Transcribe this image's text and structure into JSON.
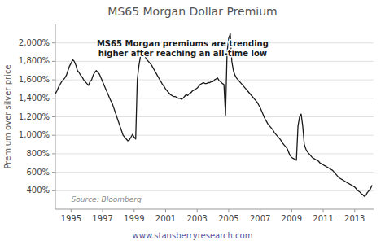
{
  "chart_data": {
    "type": "line",
    "title": "MS65 Morgan Dollar Premium",
    "ylabel": "Premium over silver price",
    "annotations": [
      "MS65 Morgan premiums are trending\nhigher after reaching an all-time low",
      "Source: Bloomberg",
      "www.stansberryresearch.com"
    ],
    "color": "#1a1a1a",
    "grid": true,
    "xlim": [
      1994.0,
      2014.2
    ],
    "xticks": [
      1995,
      1997,
      1999,
      2001,
      2003,
      2005,
      2007,
      2009,
      2011,
      2013
    ],
    "ylim": [
      200,
      2200
    ],
    "yticks": [
      {
        "value": 400,
        "label": "400%"
      },
      {
        "value": 600,
        "label": "600%"
      },
      {
        "value": 800,
        "label": "800%"
      },
      {
        "value": 1000,
        "label": "1,000%"
      },
      {
        "value": 1200,
        "label": "1,200%"
      },
      {
        "value": 1400,
        "label": "1,400%"
      },
      {
        "value": 1600,
        "label": "1,600%"
      },
      {
        "value": 1800,
        "label": "1,800%"
      },
      {
        "value": 2000,
        "label": "2,000%"
      }
    ],
    "x": [
      1994.0,
      1994.1,
      1994.2,
      1994.3,
      1994.4,
      1994.5,
      1994.6,
      1994.7,
      1994.8,
      1994.9,
      1995.0,
      1995.1,
      1995.2,
      1995.3,
      1995.4,
      1995.5,
      1995.6,
      1995.7,
      1995.8,
      1995.9,
      1996.0,
      1996.1,
      1996.2,
      1996.3,
      1996.4,
      1996.5,
      1996.6,
      1996.7,
      1996.8,
      1996.9,
      1997.0,
      1997.1,
      1997.2,
      1997.3,
      1997.4,
      1997.5,
      1997.6,
      1997.7,
      1997.8,
      1997.9,
      1998.0,
      1998.1,
      1998.2,
      1998.3,
      1998.4,
      1998.5,
      1998.6,
      1998.7,
      1998.8,
      1998.9,
      1999.0,
      1999.1,
      1999.2,
      1999.3,
      1999.4,
      1999.5,
      1999.6,
      1999.7,
      1999.8,
      1999.9,
      2000.0,
      2000.1,
      2000.2,
      2000.3,
      2000.4,
      2000.5,
      2000.6,
      2000.7,
      2000.8,
      2000.9,
      2001.0,
      2001.1,
      2001.2,
      2001.3,
      2001.4,
      2001.5,
      2001.6,
      2001.7,
      2001.8,
      2001.9,
      2002.0,
      2002.1,
      2002.2,
      2002.3,
      2002.4,
      2002.5,
      2002.6,
      2002.7,
      2002.8,
      2002.9,
      2003.0,
      2003.1,
      2003.2,
      2003.3,
      2003.4,
      2003.5,
      2003.6,
      2003.7,
      2003.8,
      2003.9,
      2004.0,
      2004.1,
      2004.2,
      2004.3,
      2004.4,
      2004.5,
      2004.6,
      2004.7,
      2004.8,
      2004.9,
      2005.0,
      2005.1,
      2005.2,
      2005.3,
      2005.4,
      2005.5,
      2005.6,
      2005.7,
      2005.8,
      2005.9,
      2006.0,
      2006.1,
      2006.2,
      2006.3,
      2006.4,
      2006.5,
      2006.6,
      2006.7,
      2006.8,
      2006.9,
      2007.0,
      2007.1,
      2007.2,
      2007.3,
      2007.4,
      2007.5,
      2007.6,
      2007.7,
      2007.8,
      2007.9,
      2008.0,
      2008.1,
      2008.2,
      2008.3,
      2008.4,
      2008.5,
      2008.6,
      2008.7,
      2008.8,
      2008.9,
      2009.0,
      2009.1,
      2009.2,
      2009.3,
      2009.4,
      2009.5,
      2009.6,
      2009.7,
      2009.8,
      2009.9,
      2010.0,
      2010.1,
      2010.2,
      2010.3,
      2010.4,
      2010.5,
      2010.6,
      2010.7,
      2010.8,
      2010.9,
      2011.0,
      2011.1,
      2011.2,
      2011.3,
      2011.4,
      2011.5,
      2011.6,
      2011.7,
      2011.8,
      2011.9,
      2012.0,
      2012.1,
      2012.2,
      2012.3,
      2012.4,
      2012.5,
      2012.6,
      2012.7,
      2012.8,
      2012.9,
      2013.0,
      2013.1,
      2013.2,
      2013.3,
      2013.4,
      2013.5,
      2013.6,
      2013.7,
      2013.8,
      2013.9,
      2014.0,
      2014.1
    ],
    "values": [
      1450,
      1480,
      1520,
      1550,
      1580,
      1600,
      1620,
      1650,
      1700,
      1750,
      1780,
      1820,
      1800,
      1760,
      1700,
      1680,
      1650,
      1630,
      1600,
      1580,
      1560,
      1540,
      1580,
      1600,
      1650,
      1680,
      1700,
      1680,
      1660,
      1620,
      1580,
      1540,
      1500,
      1460,
      1420,
      1380,
      1350,
      1300,
      1250,
      1200,
      1150,
      1100,
      1050,
      1000,
      980,
      960,
      940,
      950,
      980,
      1010,
      980,
      960,
      1600,
      1750,
      1850,
      1900,
      1880,
      1850,
      1820,
      1800,
      1780,
      1760,
      1730,
      1700,
      1670,
      1640,
      1610,
      1580,
      1550,
      1530,
      1500,
      1480,
      1460,
      1440,
      1430,
      1420,
      1420,
      1410,
      1400,
      1400,
      1390,
      1400,
      1420,
      1440,
      1430,
      1450,
      1460,
      1480,
      1490,
      1500,
      1510,
      1530,
      1550,
      1560,
      1570,
      1560,
      1560,
      1570,
      1570,
      1580,
      1580,
      1600,
      1610,
      1620,
      1590,
      1580,
      1560,
      1550,
      1220,
      1900,
      2050,
      2100,
      1800,
      1700,
      1650,
      1620,
      1600,
      1580,
      1560,
      1540,
      1520,
      1500,
      1480,
      1460,
      1440,
      1420,
      1400,
      1380,
      1360,
      1330,
      1300,
      1260,
      1220,
      1180,
      1150,
      1120,
      1100,
      1080,
      1060,
      1030,
      1010,
      990,
      970,
      950,
      920,
      900,
      880,
      860,
      820,
      780,
      760,
      750,
      740,
      730,
      1100,
      1200,
      1230,
      1100,
      900,
      850,
      820,
      800,
      780,
      760,
      750,
      740,
      730,
      720,
      700,
      690,
      680,
      670,
      660,
      650,
      640,
      630,
      620,
      600,
      580,
      560,
      540,
      530,
      520,
      510,
      500,
      490,
      480,
      470,
      460,
      450,
      440,
      420,
      400,
      390,
      370,
      360,
      340,
      350,
      380,
      400,
      420,
      460
    ]
  }
}
